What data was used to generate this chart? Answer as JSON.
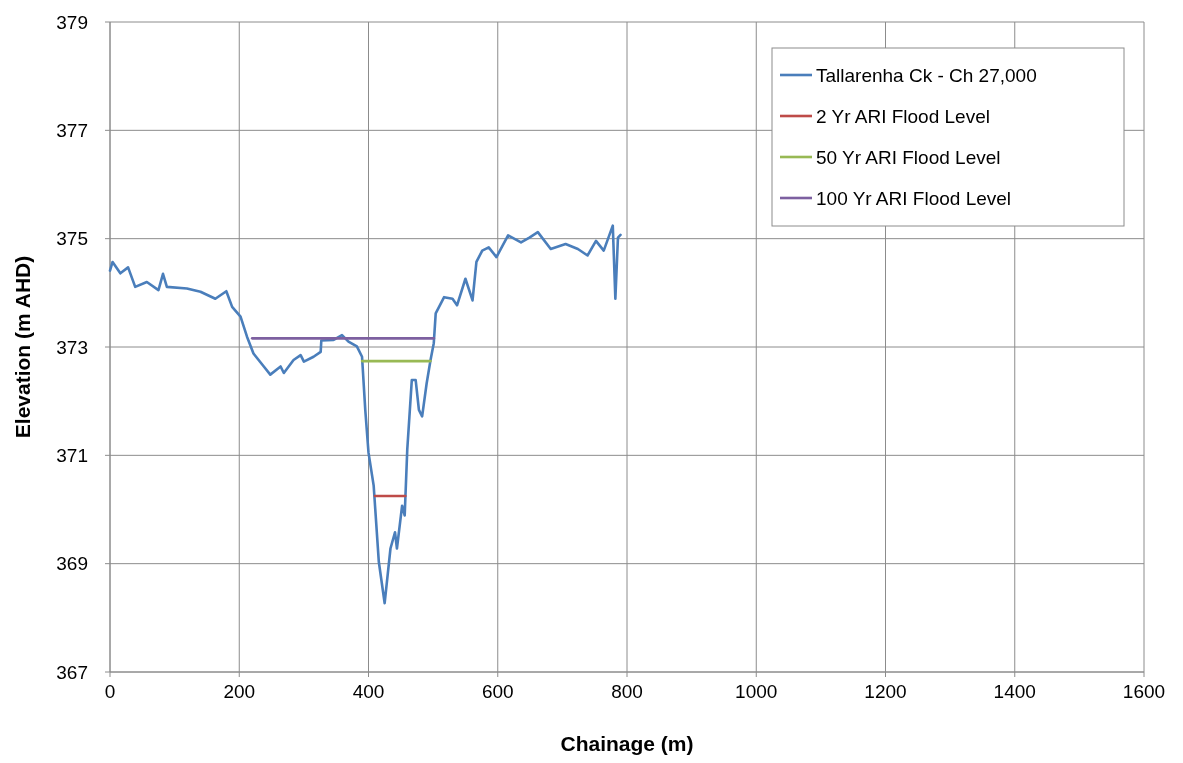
{
  "chart_data": {
    "type": "line",
    "xlabel": "Chainage (m)",
    "ylabel": "Elevation (m AHD)",
    "xlim": [
      0,
      1600
    ],
    "xticks": [
      0,
      200,
      400,
      600,
      800,
      1000,
      1200,
      1400,
      1600
    ],
    "ylim": [
      367,
      379
    ],
    "yticks": [
      367,
      369,
      371,
      373,
      375,
      377,
      379
    ],
    "grid": true,
    "legend": "top right",
    "marker": "none",
    "line_style": "solid",
    "series": [
      {
        "name": "Tallarenha Ck -  Ch 27,000",
        "color": "#4a7ebb",
        "x": [
          0,
          4,
          16,
          28,
          39,
          57,
          75,
          82,
          88,
          119,
          140,
          163,
          180,
          189,
          202,
          212,
          222,
          238,
          248,
          264,
          269,
          284,
          295,
          300,
          315,
          326,
          327,
          346,
          359,
          369,
          382,
          390,
          395,
          400,
          408,
          416,
          425,
          434,
          441,
          444,
          452,
          456,
          460,
          467,
          473,
          478,
          483,
          490,
          496,
          501,
          504,
          517,
          530,
          537,
          550,
          561,
          567,
          576,
          586,
          598,
          616,
          636,
          649,
          662,
          682,
          705,
          724,
          739,
          752,
          764,
          778,
          779,
          782,
          786,
          790
        ],
        "values": [
          374.41,
          374.57,
          374.36,
          374.47,
          374.11,
          374.2,
          374.05,
          374.35,
          374.11,
          374.08,
          374.02,
          373.89,
          374.03,
          373.74,
          373.56,
          373.19,
          372.88,
          372.64,
          372.49,
          372.64,
          372.52,
          372.76,
          372.85,
          372.73,
          372.82,
          372.91,
          373.12,
          373.13,
          373.22,
          373.1,
          373.01,
          372.82,
          371.84,
          371.05,
          370.44,
          369.03,
          368.27,
          369.28,
          369.58,
          369.28,
          370.07,
          369.89,
          371.11,
          372.39,
          372.39,
          371.84,
          371.72,
          372.33,
          372.76,
          373.07,
          373.62,
          373.92,
          373.89,
          373.77,
          374.26,
          373.86,
          374.57,
          374.78,
          374.84,
          374.66,
          375.06,
          374.93,
          375.02,
          375.12,
          374.81,
          374.9,
          374.81,
          374.69,
          374.96,
          374.78,
          375.24,
          374.9,
          373.89,
          375.02,
          375.07
        ]
      },
      {
        "name": "2 Yr ARI Flood Level",
        "color": "#be4b48",
        "x": [
          410,
          457
        ],
        "values": [
          370.25,
          370.25
        ]
      },
      {
        "name": "50 Yr ARI Flood Level",
        "color": "#98b954",
        "x": [
          390,
          496
        ],
        "values": [
          372.74,
          372.74
        ]
      },
      {
        "name": "100 Yr ARI Flood Level",
        "color": "#7d60a0",
        "x": [
          220,
          501
        ],
        "values": [
          373.16,
          373.16
        ]
      }
    ]
  }
}
